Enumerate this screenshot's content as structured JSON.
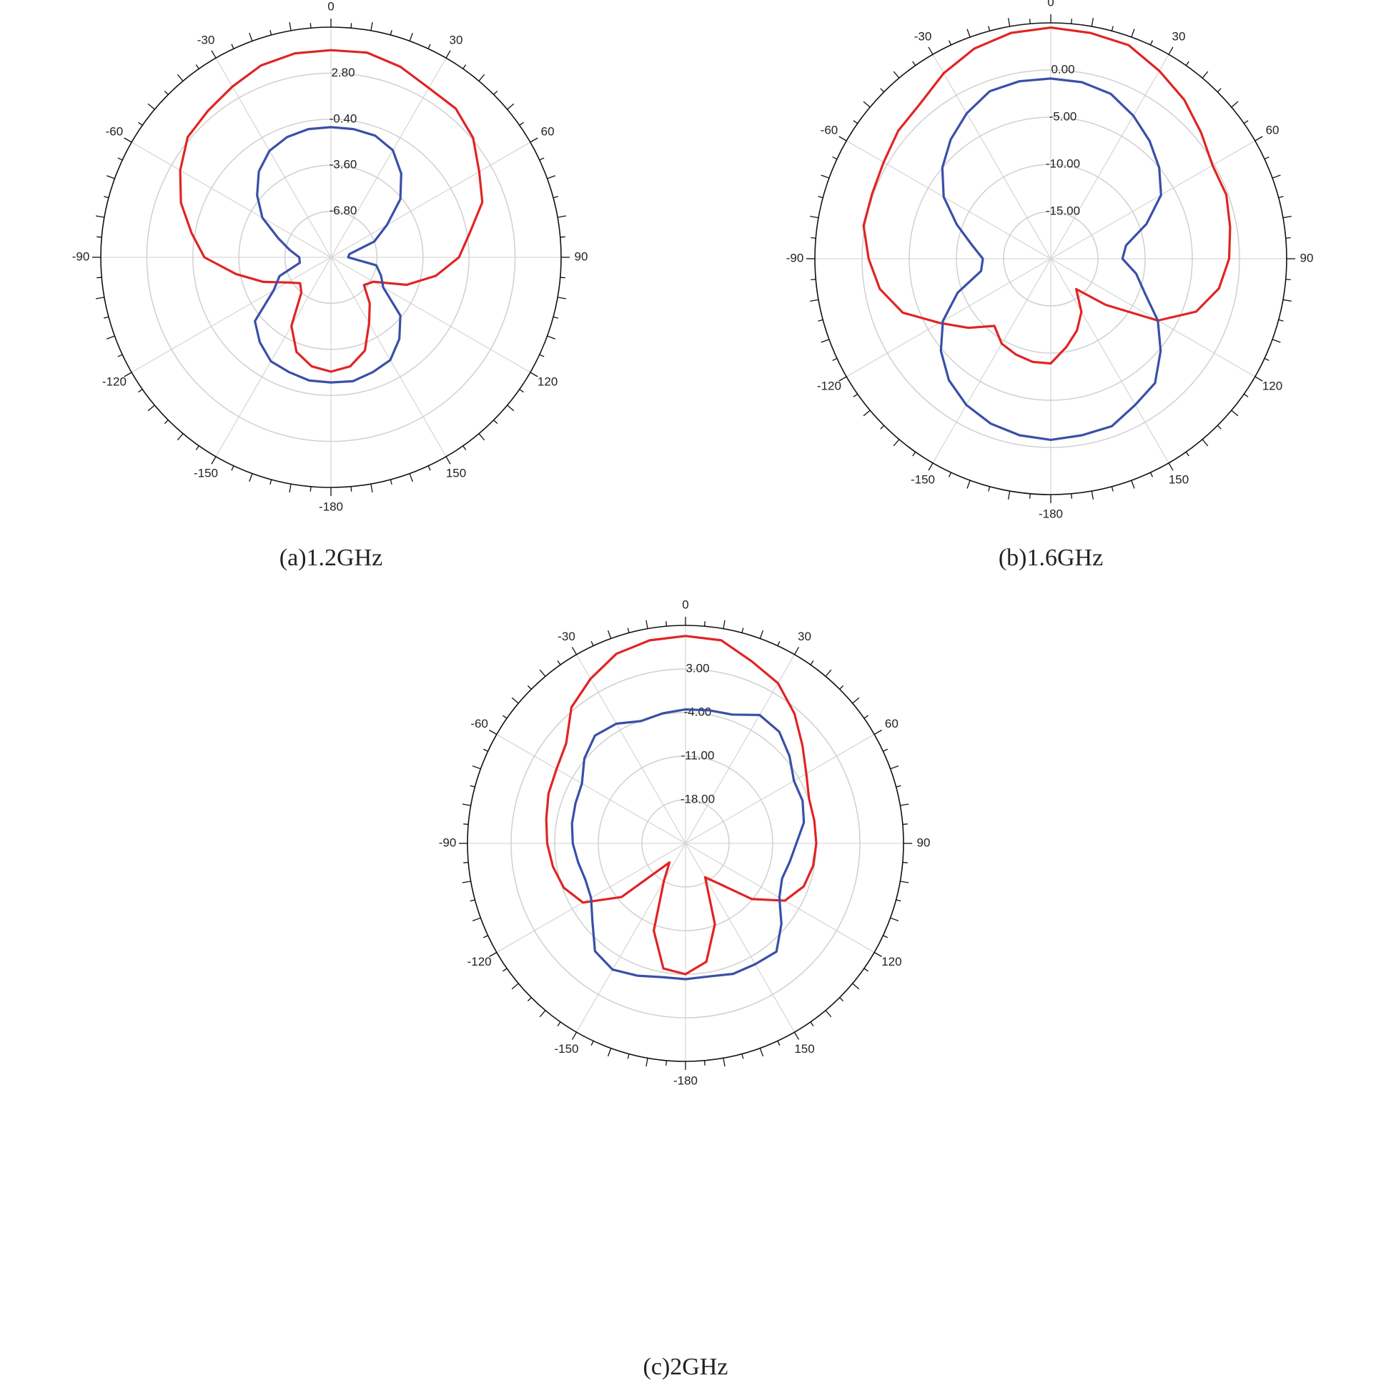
{
  "chart_data": [
    {
      "type": "polar",
      "title": "(a)1.2GHz",
      "theta": [
        -180,
        -170,
        -160,
        -150,
        -140,
        -130,
        -120,
        -110,
        -100,
        -90,
        -80,
        -70,
        -60,
        -50,
        -40,
        -30,
        -20,
        -10,
        0,
        10,
        20,
        30,
        40,
        50,
        60,
        70,
        80,
        90,
        100,
        110,
        120,
        130,
        140,
        150,
        160,
        170
      ],
      "thetaticks": [
        0,
        30,
        60,
        90,
        120,
        150,
        -180,
        -150,
        -120,
        -90,
        -60,
        -30
      ],
      "rlim": [
        -10,
        6
      ],
      "rticks": [
        {
          "value": -6.8,
          "label": "-6.80"
        },
        {
          "value": -3.6,
          "label": "-3.60"
        },
        {
          "value": -0.4,
          "label": "-0.40"
        },
        {
          "value": 2.8,
          "label": "2.80"
        }
      ],
      "series": [
        {
          "color": "#e02424",
          "values": [
            -2.05,
            -2.3,
            -3.0,
            -4.5,
            -6.8,
            -7.2,
            -6.5,
            -5.0,
            -3.3,
            -1.2,
            -0.15,
            1.1,
            2.1,
            3.0,
            3.3,
            3.7,
            4.2,
            4.4,
            4.4,
            4.45,
            4.1,
            3.6,
            3.5,
            2.9,
            1.9,
            1.2,
            -0.2,
            -1.1,
            -2.6,
            -4.4,
            -6.6,
            -7.0,
            -5.8,
            -4.7,
            -3.1,
            -2.3
          ]
        },
        {
          "color": "#3a4fa8",
          "values": [
            -1.3,
            -1.3,
            -1.5,
            -1.65,
            -2.3,
            -3.1,
            -5.4,
            -6.2,
            -7.8,
            -7.8,
            -7.1,
            -6.1,
            -4.5,
            -3.3,
            -2.2,
            -1.45,
            -1.1,
            -0.95,
            -0.95,
            -0.95,
            -1.0,
            -1.4,
            -2.4,
            -3.7,
            -5.5,
            -6.8,
            -8.7,
            -8.8,
            -6.8,
            -6.3,
            -5.8,
            -3.7,
            -2.6,
            -1.75,
            -1.5,
            -1.25
          ]
        }
      ]
    },
    {
      "type": "polar",
      "title": "(b)1.6GHz",
      "theta": [
        -180,
        -170,
        -160,
        -150,
        -140,
        -130,
        -120,
        -110,
        -100,
        -90,
        -80,
        -70,
        -60,
        -50,
        -40,
        -30,
        -20,
        -10,
        0,
        10,
        20,
        30,
        40,
        50,
        60,
        70,
        80,
        90,
        100,
        110,
        120,
        130,
        140,
        150,
        160,
        170
      ],
      "thetaticks": [
        0,
        30,
        60,
        90,
        120,
        150,
        -180,
        -150,
        -120,
        -90,
        -60,
        -30
      ],
      "rlim": [
        -20,
        5
      ],
      "rticks": [
        {
          "value": -15,
          "label": "-15.00"
        },
        {
          "value": -10,
          "label": "-10.00"
        },
        {
          "value": -5,
          "label": "-5.00"
        },
        {
          "value": 0,
          "label": "0.00"
        }
      ],
      "series": [
        {
          "color": "#e02424",
          "values": [
            -8.9,
            -8.9,
            -9.2,
            -9.6,
            -10.7,
            -8.6,
            -6.4,
            -3.3,
            -1.6,
            -0.7,
            0.15,
            0.15,
            0.45,
            1.1,
            1.5,
            2.7,
            3.7,
            4.3,
            4.5,
            4.3,
            4.1,
            3.0,
            2.0,
            0.8,
            -0.2,
            -0.2,
            -0.7,
            -1.1,
            -1.9,
            -3.6,
            -6.9,
            -12.4,
            -15.8,
            -13.5,
            -11.9,
            -10.5
          ]
        },
        {
          "color": "#3a4fa8",
          "values": [
            -0.8,
            -1.0,
            -1.4,
            -2.1,
            -3.2,
            -4.8,
            -6.8,
            -9.5,
            -12.5,
            -12.8,
            -11.5,
            -9.4,
            -6.9,
            -5.0,
            -3.5,
            -2.2,
            -1.1,
            -0.9,
            -0.9,
            -1.0,
            -1.4,
            -2.5,
            -3.7,
            -5.0,
            -6.5,
            -9.2,
            -11.9,
            -12.4,
            -10.8,
            -9.4,
            -6.9,
            -4.8,
            -2.8,
            -2.1,
            -1.1,
            -1.0
          ]
        }
      ]
    },
    {
      "type": "polar",
      "title": "(c)2GHz",
      "theta": [
        -180,
        -170,
        -160,
        -150,
        -140,
        -130,
        -120,
        -110,
        -100,
        -90,
        -80,
        -70,
        -60,
        -50,
        -40,
        -30,
        -20,
        -10,
        0,
        10,
        20,
        30,
        40,
        50,
        60,
        70,
        80,
        90,
        100,
        110,
        120,
        130,
        140,
        150,
        160,
        170
      ],
      "thetaticks": [
        0,
        30,
        60,
        90,
        120,
        150,
        -180,
        -150,
        -120,
        -90,
        -60,
        -30
      ],
      "rlim": [
        -25,
        10
      ],
      "rticks": [
        {
          "value": -18,
          "label": "-18.00"
        },
        {
          "value": -11,
          "label": "-11.00"
        },
        {
          "value": -4,
          "label": "-4.00"
        },
        {
          "value": 3,
          "label": "3.00"
        }
      ],
      "series": [
        {
          "color": "#e02424",
          "values": [
            -4.0,
            -4.6,
            -10.1,
            -18.1,
            -21.0,
            -11.6,
            -6.0,
            -4.2,
            -3.4,
            -2.8,
            -2.3,
            -1.6,
            -1.1,
            0.0,
            3.5,
            5.5,
            7.4,
            8.1,
            8.3,
            8.1,
            6.1,
            4.7,
            2.2,
            -0.5,
            -2.6,
            -3.9,
            -4.0,
            -4.0,
            -4.2,
            -4.8,
            -6.6,
            -11.1,
            -16.5,
            -18.7,
            -11.2,
            -5.7
          ]
        },
        {
          "color": "#3a4fa8",
          "values": [
            -3.2,
            -3.2,
            -2.4,
            -1.6,
            -2.4,
            -5.5,
            -7.5,
            -7.9,
            -7.5,
            -6.9,
            -6.5,
            -6.2,
            -5.8,
            -3.8,
            -2.4,
            -2.8,
            -4.1,
            -3.8,
            -3.5,
            -3.3,
            -3.0,
            -1.2,
            -1.6,
            -3.2,
            -4.9,
            -5.0,
            -5.7,
            -7.2,
            -8.0,
            -8.5,
            -7.6,
            -4.9,
            -2.3,
            -2.6,
            -2.7,
            -3.3
          ]
        }
      ]
    }
  ]
}
